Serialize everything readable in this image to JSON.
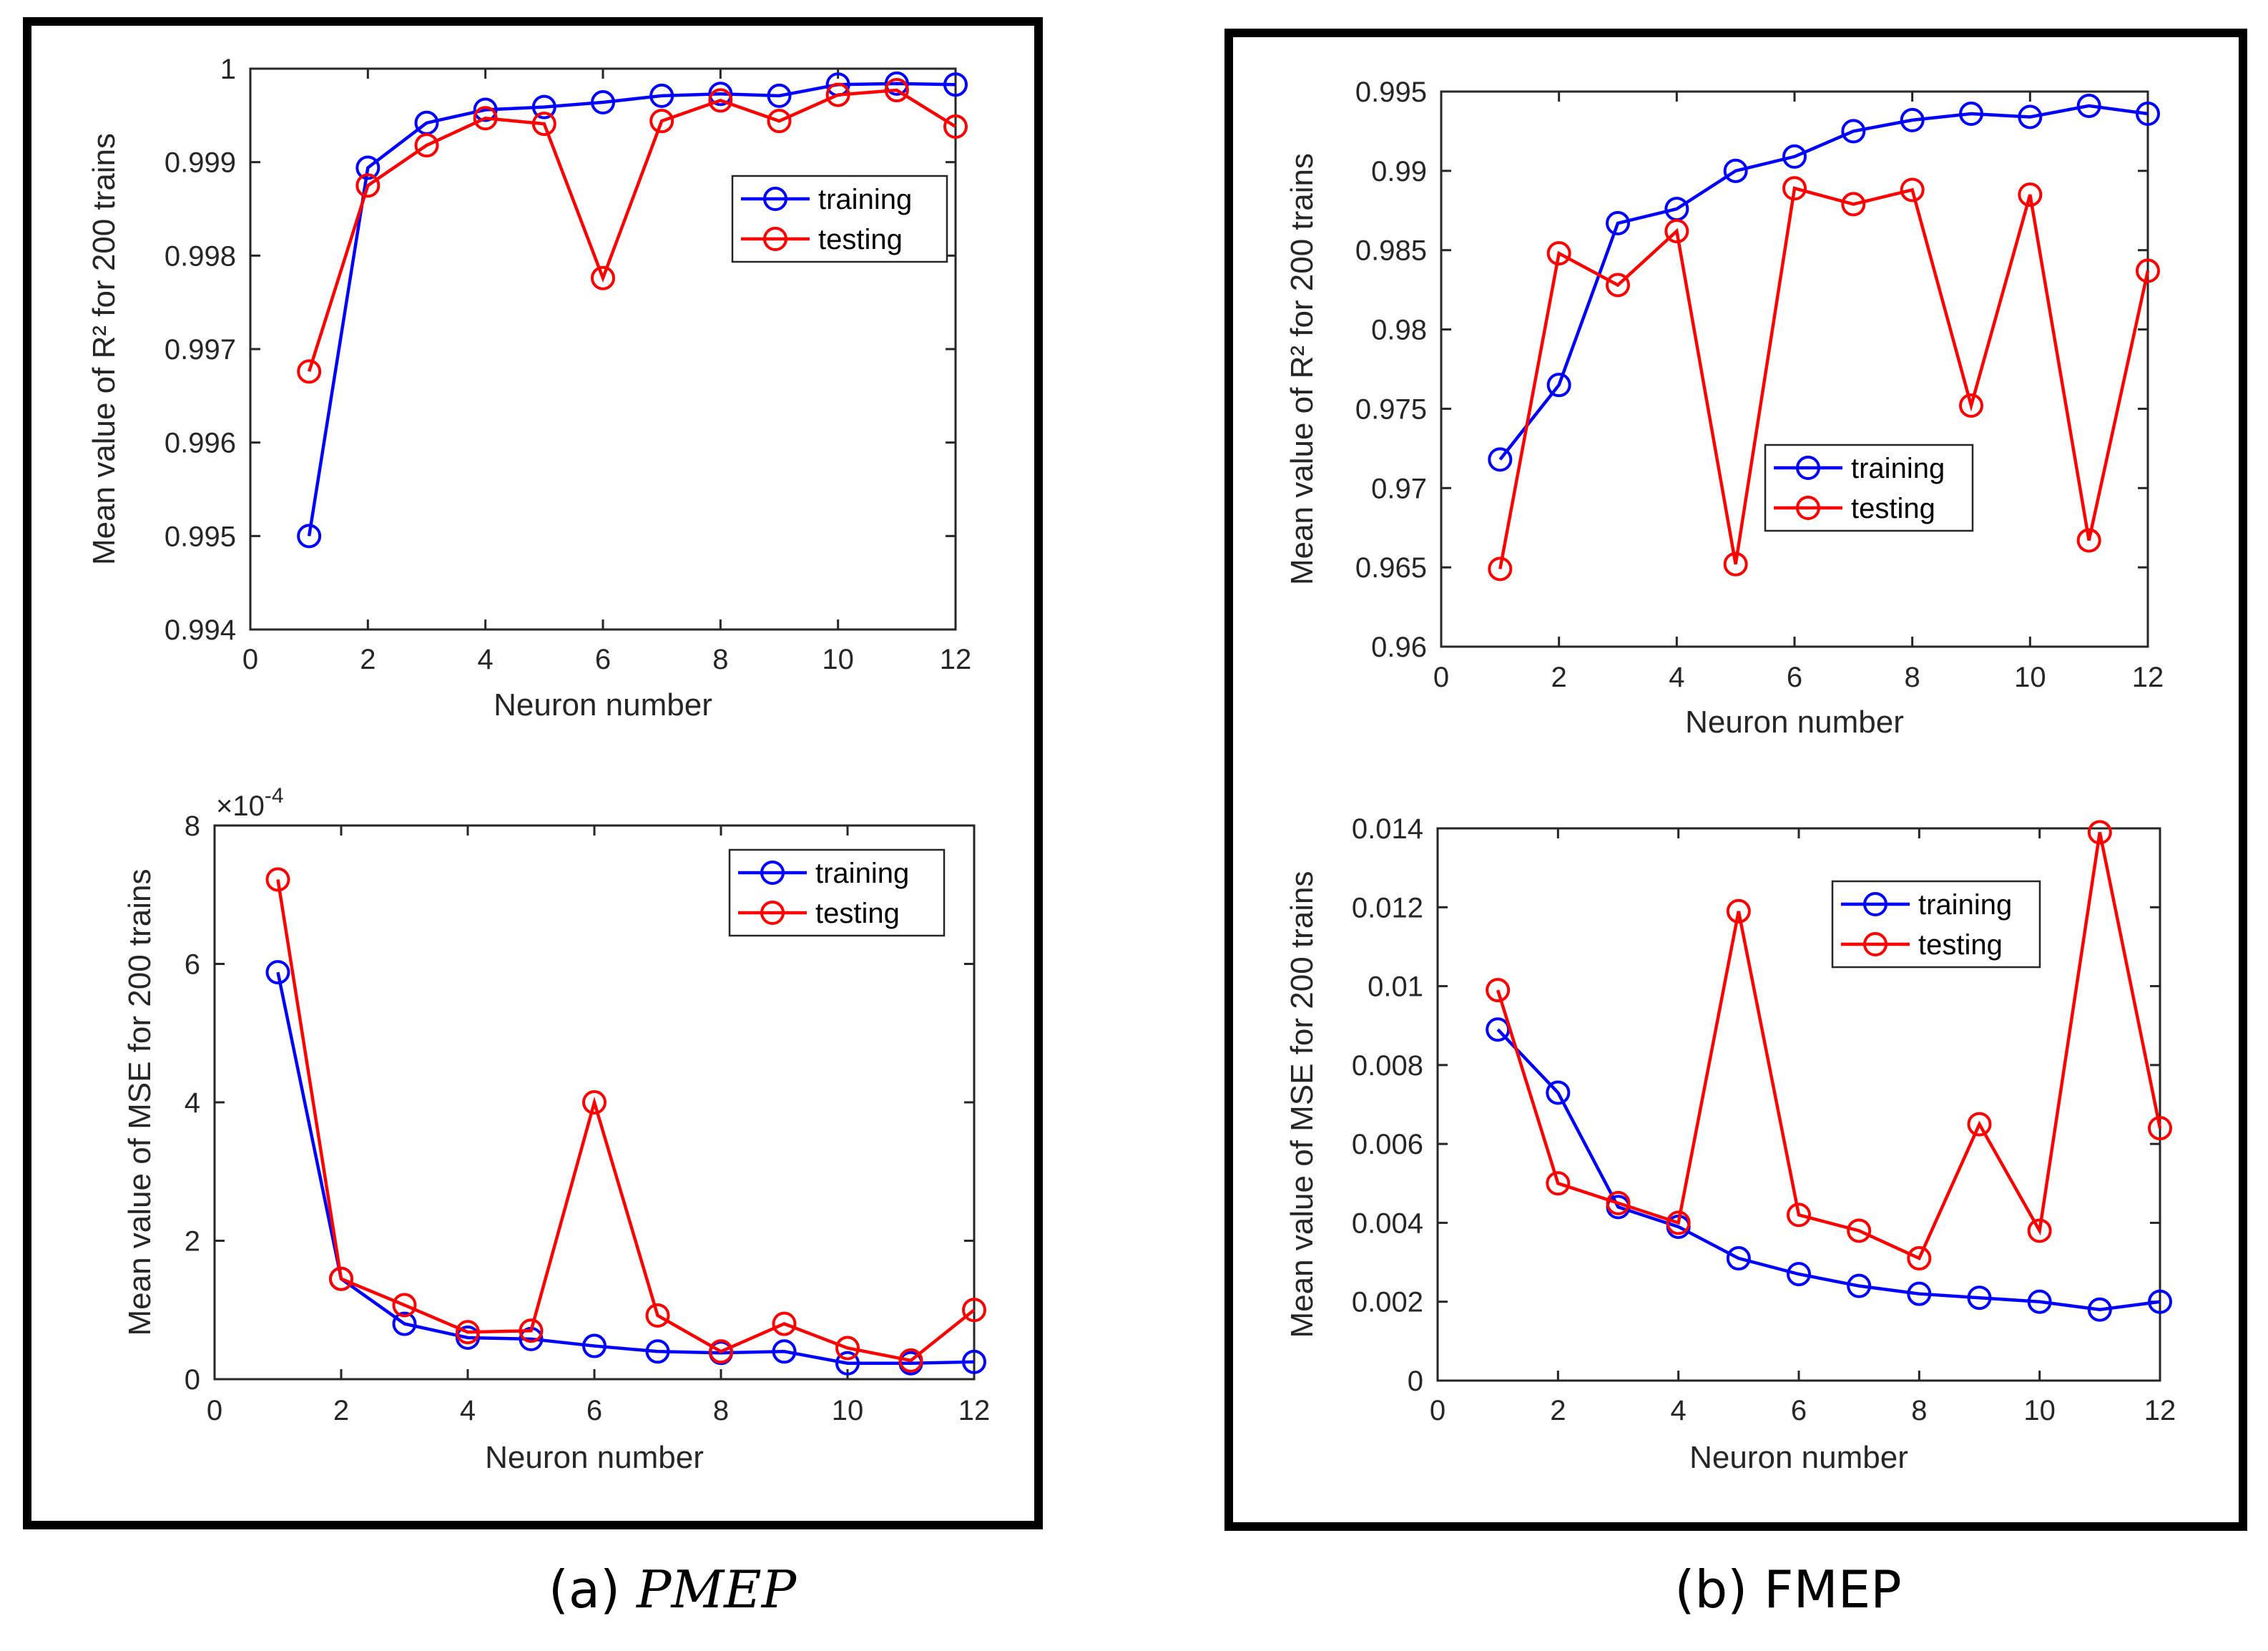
{
  "captions": {
    "a_prefix": "(a) ",
    "a_math": "PMEP",
    "b": "(b) FMEP"
  },
  "colors": {
    "training": "#0000FF",
    "testing": "#FF0000"
  },
  "chart_data": [
    {
      "id": "a-r2",
      "type": "line",
      "xlabel": "Neuron number",
      "ylabel": "Mean value of R² for 200 trains",
      "xlim": [
        0,
        12
      ],
      "ylim": [
        0.994,
        1
      ],
      "xticks": [
        "0",
        "2",
        "4",
        "6",
        "8",
        "10",
        "12"
      ],
      "yticks": [
        "0.994",
        "0.995",
        "0.996",
        "0.997",
        "0.998",
        "0.999",
        "1"
      ],
      "legend_position": "upper-right",
      "x": [
        1,
        2,
        3,
        4,
        5,
        6,
        7,
        8,
        9,
        10,
        11,
        12
      ],
      "series": [
        {
          "name": "training",
          "color": "#0000FF",
          "values": [
            0.995,
            0.99894,
            0.99942,
            0.99956,
            0.99959,
            0.99964,
            0.99971,
            0.99973,
            0.99971,
            0.99983,
            0.99984,
            0.99983
          ]
        },
        {
          "name": "testing",
          "color": "#FF0000",
          "values": [
            0.99676,
            0.99875,
            0.99918,
            0.99947,
            0.99941,
            0.99776,
            0.99944,
            0.99966,
            0.99944,
            0.99972,
            0.99977,
            0.99938
          ]
        }
      ]
    },
    {
      "id": "a-mse",
      "type": "line",
      "xlabel": "Neuron number",
      "ylabel": "Mean value of MSE for 200 trains",
      "multiplier_base": "×10",
      "multiplier_exp": "-4",
      "xlim": [
        0,
        12
      ],
      "ylim": [
        0,
        8
      ],
      "xticks": [
        "0",
        "2",
        "4",
        "6",
        "8",
        "10",
        "12"
      ],
      "yticks": [
        "0",
        "2",
        "4",
        "6",
        "8"
      ],
      "legend_position": "upper-right",
      "x": [
        1,
        2,
        3,
        4,
        5,
        6,
        7,
        8,
        9,
        10,
        11,
        12
      ],
      "series": [
        {
          "name": "training",
          "color": "#0000FF",
          "values": [
            5.88,
            1.45,
            0.8,
            0.6,
            0.58,
            0.48,
            0.4,
            0.38,
            0.4,
            0.23,
            0.23,
            0.25
          ]
        },
        {
          "name": "testing",
          "color": "#FF0000",
          "values": [
            7.22,
            1.45,
            1.07,
            0.68,
            0.7,
            4.0,
            0.92,
            0.4,
            0.8,
            0.45,
            0.27,
            1.0
          ]
        }
      ]
    },
    {
      "id": "b-r2",
      "type": "line",
      "xlabel": "Neuron number",
      "ylabel": "Mean value of R² for 200 trains",
      "xlim": [
        0,
        12
      ],
      "ylim": [
        0.96,
        0.995
      ],
      "xticks": [
        "0",
        "2",
        "4",
        "6",
        "8",
        "10",
        "12"
      ],
      "yticks": [
        "0.96",
        "0.965",
        "0.97",
        "0.975",
        "0.98",
        "0.985",
        "0.99",
        "0.995"
      ],
      "legend_position": "center-right",
      "x": [
        1,
        2,
        3,
        4,
        5,
        6,
        7,
        8,
        9,
        10,
        11,
        12
      ],
      "series": [
        {
          "name": "training",
          "color": "#0000FF",
          "values": [
            0.9718,
            0.9765,
            0.9867,
            0.9876,
            0.99,
            0.9909,
            0.9925,
            0.9932,
            0.9936,
            0.9934,
            0.9941,
            0.9936
          ]
        },
        {
          "name": "testing",
          "color": "#FF0000",
          "values": [
            0.9649,
            0.9848,
            0.9828,
            0.9862,
            0.9652,
            0.9889,
            0.9879,
            0.9888,
            0.9752,
            0.9885,
            0.9667,
            0.9837
          ]
        }
      ]
    },
    {
      "id": "b-mse",
      "type": "line",
      "xlabel": "Neuron number",
      "ylabel": "Mean value of MSE for 200 trains",
      "xlim": [
        0,
        12
      ],
      "ylim": [
        0,
        0.014
      ],
      "xticks": [
        "0",
        "2",
        "4",
        "6",
        "8",
        "10",
        "12"
      ],
      "yticks": [
        "0",
        "0.002",
        "0.004",
        "0.006",
        "0.008",
        "0.01",
        "0.012",
        "0.014"
      ],
      "legend_position": "upper-center",
      "x": [
        1,
        2,
        3,
        4,
        5,
        6,
        7,
        8,
        9,
        10,
        11,
        12
      ],
      "series": [
        {
          "name": "training",
          "color": "#0000FF",
          "values": [
            0.0089,
            0.0073,
            0.0044,
            0.0039,
            0.0031,
            0.0027,
            0.0024,
            0.0022,
            0.0021,
            0.002,
            0.0018,
            0.002
          ]
        },
        {
          "name": "testing",
          "color": "#FF0000",
          "values": [
            0.0099,
            0.005,
            0.0045,
            0.004,
            0.0119,
            0.0042,
            0.0038,
            0.0031,
            0.0065,
            0.0038,
            0.0139,
            0.0064
          ]
        }
      ]
    }
  ]
}
